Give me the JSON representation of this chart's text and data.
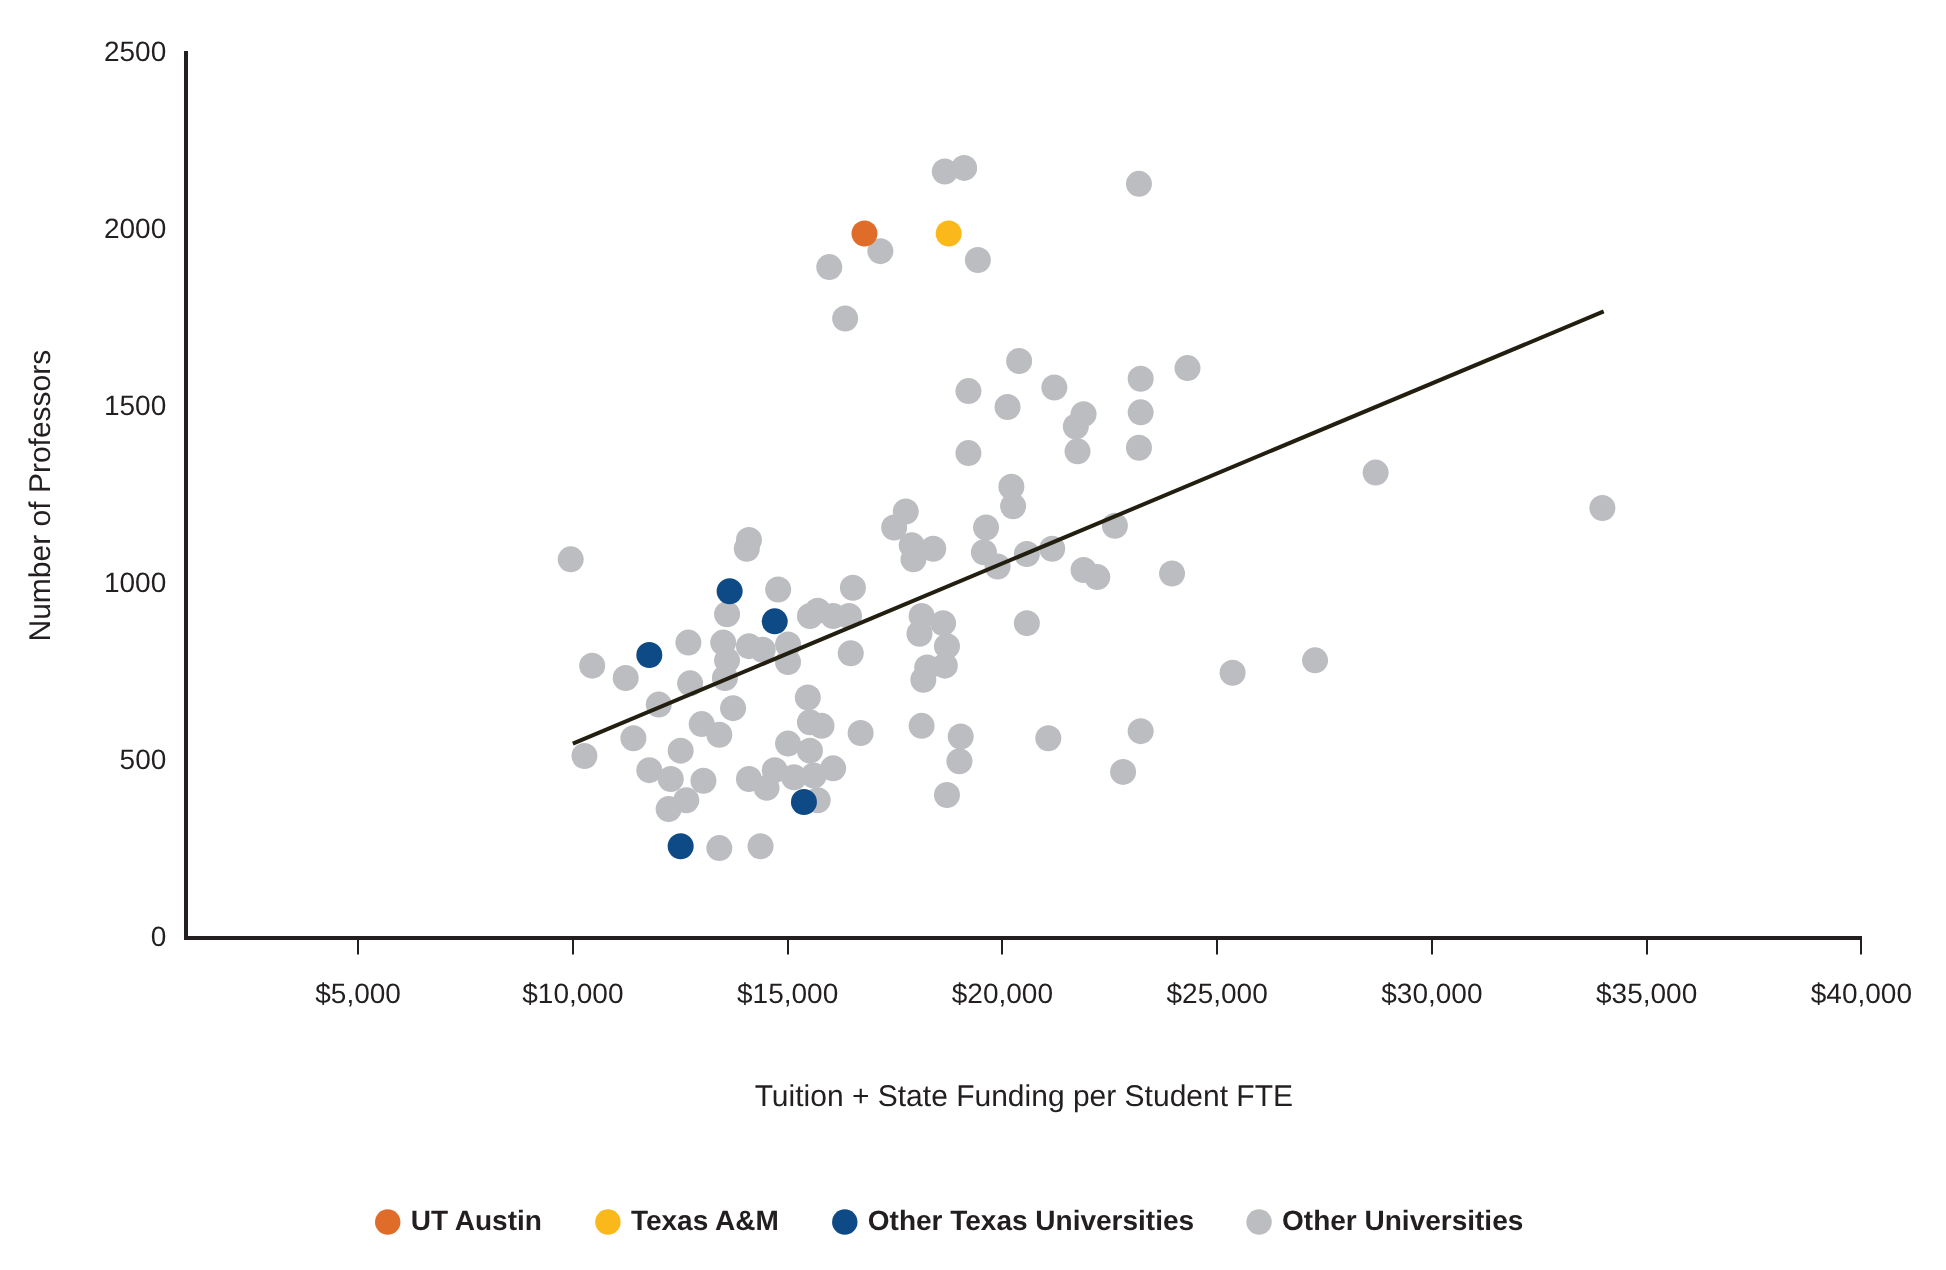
{
  "chart_data": {
    "type": "scatter",
    "xlabel": "Tuition + State Funding per Student FTE",
    "ylabel": "Number of Professors",
    "xlim": [
      1000,
      40000
    ],
    "ylim": [
      0,
      2500
    ],
    "xticks": [
      {
        "value": 5000,
        "label": "$5,000"
      },
      {
        "value": 10000,
        "label": "$10,000"
      },
      {
        "value": 15000,
        "label": "$15,000"
      },
      {
        "value": 20000,
        "label": "$20,000"
      },
      {
        "value": 25000,
        "label": "$25,000"
      },
      {
        "value": 30000,
        "label": "$30,000"
      },
      {
        "value": 35000,
        "label": "$35,000"
      },
      {
        "value": 40000,
        "label": "$40,000"
      }
    ],
    "yticks": [
      0,
      500,
      1000,
      1500,
      2000,
      2500
    ],
    "grid": false,
    "legend": "bottom",
    "marker": "circle",
    "series": [
      {
        "name": "Other Universities",
        "color": "#bcbdc0",
        "x": [
          9950,
          10270,
          10450,
          11230,
          11410,
          12000,
          11780,
          12280,
          12230,
          12510,
          12640,
          12690,
          12730,
          13000,
          13040,
          13410,
          13500,
          13590,
          13590,
          13540,
          13730,
          13410,
          14050,
          14100,
          14100,
          14420,
          14780,
          15010,
          15010,
          14700,
          14510,
          14100,
          14370,
          15010,
          15520,
          15700,
          16060,
          16430,
          16520,
          16470,
          15470,
          15520,
          15790,
          15520,
          15610,
          15150,
          15700,
          16060,
          15970,
          17160,
          16340,
          19430,
          18660,
          19110,
          23180,
          16700,
          17480,
          17750,
          17890,
          17930,
          18390,
          18120,
          18070,
          18250,
          18160,
          18620,
          18710,
          18660,
          18710,
          19000,
          19030,
          18120,
          19210,
          19210,
          19620,
          19570,
          19890,
          20120,
          20210,
          20250,
          20390,
          20570,
          20570,
          21160,
          21210,
          21070,
          21710,
          21890,
          21750,
          21890,
          22210,
          22620,
          22810,
          23220,
          23220,
          23180,
          23220,
          24310,
          23950,
          25360,
          27280,
          28690,
          33970
        ],
        "values": [
          1070,
          515,
          770,
          735,
          565,
          660,
          475,
          450,
          365,
          530,
          390,
          835,
          720,
          605,
          445,
          255,
          835,
          915,
          785,
          735,
          650,
          575,
          1100,
          1125,
          825,
          815,
          985,
          830,
          780,
          475,
          425,
          450,
          260,
          550,
          910,
          925,
          910,
          910,
          990,
          805,
          680,
          610,
          600,
          530,
          460,
          455,
          390,
          480,
          1895,
          1940,
          1750,
          1915,
          2165,
          2175,
          2130,
          580,
          1160,
          1205,
          1110,
          1070,
          1100,
          910,
          860,
          765,
          730,
          890,
          825,
          770,
          405,
          500,
          570,
          600,
          1370,
          1545,
          1160,
          1090,
          1050,
          1500,
          1275,
          1220,
          1630,
          1085,
          890,
          1100,
          1555,
          565,
          1445,
          1480,
          1375,
          1040,
          1020,
          1165,
          470,
          1580,
          1485,
          1385,
          585,
          1610,
          1030,
          750,
          785,
          1315,
          1215
        ]
      },
      {
        "name": "Other Texas Universities",
        "color": "#0e4a85",
        "x": [
          11780,
          13650,
          14700,
          15380,
          12510
        ],
        "values": [
          800,
          980,
          895,
          385,
          260
        ]
      },
      {
        "name": "Texas A&M",
        "color": "#fbb81b",
        "x": [
          18750
        ],
        "values": [
          1990
        ]
      },
      {
        "name": "UT Austin",
        "color": "#e06c2a",
        "x": [
          16790
        ],
        "values": [
          1990
        ]
      },
      {
        "type": "line",
        "color": "#231f10",
        "marker": "none",
        "x": [
          10000,
          34000
        ],
        "values": [
          550,
          1770
        ]
      }
    ]
  }
}
